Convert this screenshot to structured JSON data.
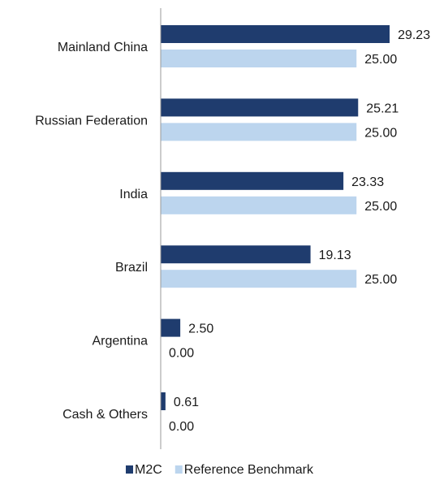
{
  "chart_data": {
    "type": "bar",
    "orientation": "horizontal",
    "categories": [
      "Mainland China",
      "Russian Federation",
      "India",
      "Brazil",
      "Argentina",
      "Cash & Others"
    ],
    "series": [
      {
        "name": "M2C",
        "color": "#1f3c6e",
        "values": [
          29.23,
          25.21,
          23.33,
          19.13,
          2.5,
          0.61
        ],
        "labels": [
          "29.23",
          "25.21",
          "23.33",
          "19.13",
          "2.50",
          "0.61"
        ]
      },
      {
        "name": "Reference Benchmark",
        "color": "#bcd5ee",
        "values": [
          25.0,
          25.0,
          25.0,
          25.0,
          0.0,
          0.0
        ],
        "labels": [
          "25.00",
          "25.00",
          "25.00",
          "25.00",
          "0.00",
          "0.00"
        ]
      }
    ],
    "xlim": [
      0,
      30
    ],
    "grid": false,
    "legend_position": "bottom-center"
  }
}
